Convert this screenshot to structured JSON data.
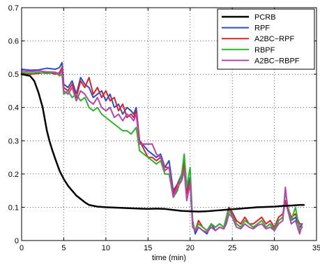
{
  "chart_data": {
    "type": "line",
    "title": "",
    "xlabel": "time (min)",
    "ylabel": "",
    "xlim": [
      0,
      35
    ],
    "ylim": [
      0,
      0.7
    ],
    "xticks": [
      0,
      5,
      10,
      15,
      20,
      25,
      30,
      35
    ],
    "xtick_labels": [
      "0",
      "5",
      "10",
      "15",
      "20",
      "25",
      "30",
      "35"
    ],
    "yticks": [
      0,
      0.1,
      0.2,
      0.3,
      0.4,
      0.5,
      0.6,
      0.7
    ],
    "ytick_labels": [
      "0",
      "0.1",
      "0.2",
      "0.3",
      "0.4",
      "0.5",
      "0.6",
      "0.7"
    ],
    "grid": true,
    "grid_style": "dotted",
    "legend_position": "top-right",
    "series": [
      {
        "name": "PCRB",
        "color": "#000000",
        "x": [
          0,
          1,
          1.5,
          2,
          2.5,
          3,
          3.3,
          3.6,
          4,
          4.5,
          5,
          5.5,
          6,
          6.5,
          7,
          7.5,
          8,
          9,
          10,
          11,
          12,
          13,
          14,
          15,
          16,
          17,
          18,
          19,
          20,
          21,
          22,
          23,
          24,
          25,
          26,
          27,
          28,
          29,
          30,
          31,
          32,
          33,
          33.5
        ],
        "y": [
          0.5,
          0.495,
          0.48,
          0.445,
          0.4,
          0.33,
          0.3,
          0.275,
          0.245,
          0.21,
          0.185,
          0.165,
          0.15,
          0.135,
          0.125,
          0.115,
          0.107,
          0.102,
          0.1,
          0.099,
          0.098,
          0.097,
          0.096,
          0.095,
          0.096,
          0.095,
          0.092,
          0.089,
          0.088,
          0.087,
          0.088,
          0.09,
          0.092,
          0.094,
          0.096,
          0.098,
          0.1,
          0.101,
          0.102,
          0.104,
          0.105,
          0.107,
          0.107
        ]
      },
      {
        "name": "RPF",
        "color": "#2b4ec8",
        "x": [
          0,
          1,
          2,
          3,
          4,
          4.5,
          4.8,
          5,
          5.5,
          6,
          6.5,
          7,
          7.5,
          8,
          8.5,
          9,
          9.5,
          10,
          10.5,
          11,
          11.5,
          12,
          12.5,
          13,
          13.3,
          13.6,
          14,
          15,
          15.5,
          16,
          16.5,
          17,
          17.5,
          18,
          18.5,
          19,
          19.3,
          19.6,
          20,
          20.3,
          20.6,
          21,
          21.5,
          22,
          22.5,
          23,
          23.5,
          24,
          24.3,
          24.6,
          25,
          25.5,
          26,
          26.5,
          27,
          27.5,
          28,
          28.5,
          29,
          29.5,
          30,
          30.5,
          31,
          31.3,
          31.6,
          32,
          32.5,
          33,
          33.3
        ],
        "y": [
          0.515,
          0.512,
          0.513,
          0.518,
          0.515,
          0.52,
          0.535,
          0.47,
          0.46,
          0.48,
          0.44,
          0.49,
          0.47,
          0.46,
          0.43,
          0.44,
          0.45,
          0.42,
          0.44,
          0.4,
          0.41,
          0.38,
          0.4,
          0.39,
          0.38,
          0.4,
          0.3,
          0.27,
          0.26,
          0.25,
          0.26,
          0.22,
          0.24,
          0.15,
          0.17,
          0.2,
          0.24,
          0.15,
          0.19,
          0.06,
          0.02,
          0.04,
          0.03,
          0.02,
          0.05,
          0.03,
          0.04,
          0.035,
          0.06,
          0.09,
          0.08,
          0.05,
          0.04,
          0.06,
          0.05,
          0.04,
          0.05,
          0.06,
          0.04,
          0.05,
          0.03,
          0.06,
          0.07,
          0.12,
          0.09,
          0.06,
          0.07,
          0.04,
          0.05
        ]
      },
      {
        "name": "A2BC−RPF",
        "color": "#e0202a",
        "x": [
          0,
          1,
          2,
          3,
          4,
          4.5,
          4.8,
          5,
          5.5,
          6,
          6.5,
          7,
          7.5,
          8,
          8.5,
          9,
          9.5,
          10,
          10.5,
          11,
          11.5,
          12,
          12.5,
          13,
          13.3,
          13.6,
          14,
          15,
          15.5,
          16,
          16.5,
          17,
          17.5,
          18,
          18.5,
          19,
          19.3,
          19.6,
          20,
          20.3,
          20.6,
          21,
          21.5,
          22,
          22.5,
          23,
          23.5,
          24,
          24.3,
          24.6,
          25,
          25.5,
          26,
          26.5,
          27,
          27.5,
          28,
          28.5,
          29,
          29.5,
          30,
          30.5,
          31,
          31.3,
          31.6,
          32,
          32.5,
          33,
          33.3
        ],
        "y": [
          0.505,
          0.5,
          0.502,
          0.506,
          0.5,
          0.505,
          0.52,
          0.46,
          0.45,
          0.47,
          0.43,
          0.48,
          0.46,
          0.49,
          0.44,
          0.46,
          0.43,
          0.45,
          0.42,
          0.43,
          0.39,
          0.41,
          0.37,
          0.38,
          0.37,
          0.39,
          0.3,
          0.25,
          0.25,
          0.24,
          0.25,
          0.22,
          0.22,
          0.14,
          0.17,
          0.19,
          0.23,
          0.14,
          0.18,
          0.05,
          0.03,
          0.06,
          0.04,
          0.03,
          0.05,
          0.04,
          0.05,
          0.04,
          0.07,
          0.1,
          0.085,
          0.06,
          0.05,
          0.07,
          0.05,
          0.05,
          0.06,
          0.07,
          0.05,
          0.06,
          0.04,
          0.07,
          0.08,
          0.12,
          0.1,
          0.07,
          0.08,
          0.05,
          0.05
        ]
      },
      {
        "name": "RBPF",
        "color": "#2fb32f",
        "x": [
          0,
          1,
          2,
          3,
          4,
          4.5,
          4.8,
          5,
          5.5,
          6,
          6.5,
          7,
          7.5,
          8,
          8.5,
          9,
          9.5,
          10,
          10.5,
          11,
          11.5,
          12,
          12.5,
          13,
          13.3,
          13.6,
          14,
          15,
          15.5,
          16,
          16.5,
          17,
          17.5,
          18,
          18.5,
          19,
          19.3,
          19.6,
          20,
          20.3,
          20.6,
          21,
          21.5,
          22,
          22.5,
          23,
          23.5,
          24,
          24.3,
          24.6,
          25,
          25.5,
          26,
          26.5,
          27,
          27.5,
          28,
          28.5,
          29,
          29.5,
          30,
          30.5,
          31,
          31.3,
          31.6,
          32,
          32.5,
          33,
          33.3
        ],
        "y": [
          0.505,
          0.503,
          0.505,
          0.502,
          0.505,
          0.495,
          0.5,
          0.44,
          0.45,
          0.43,
          0.44,
          0.42,
          0.43,
          0.4,
          0.39,
          0.4,
          0.38,
          0.37,
          0.36,
          0.35,
          0.34,
          0.33,
          0.33,
          0.32,
          0.33,
          0.34,
          0.27,
          0.25,
          0.24,
          0.23,
          0.24,
          0.2,
          0.2,
          0.13,
          0.15,
          0.2,
          0.26,
          0.16,
          0.22,
          0.05,
          0.03,
          0.05,
          0.04,
          0.03,
          0.05,
          0.04,
          0.05,
          0.04,
          0.07,
          0.09,
          0.075,
          0.05,
          0.04,
          0.06,
          0.05,
          0.04,
          0.05,
          0.06,
          0.04,
          0.05,
          0.035,
          0.06,
          0.07,
          0.15,
          0.1,
          0.06,
          0.1,
          0.03,
          0.04
        ]
      },
      {
        "name": "A2BC−RBPF",
        "color": "#b844b0",
        "x": [
          0,
          1,
          2,
          3,
          4,
          4.5,
          4.8,
          5,
          5.5,
          6,
          6.5,
          7,
          7.5,
          8,
          8.5,
          9,
          9.5,
          10,
          10.5,
          11,
          11.5,
          12,
          12.5,
          13,
          13.3,
          13.6,
          14,
          15,
          15.5,
          16,
          16.5,
          17,
          17.5,
          18,
          18.5,
          19,
          19.3,
          19.6,
          20,
          20.3,
          20.6,
          21,
          21.5,
          22,
          22.5,
          23,
          23.5,
          24,
          24.3,
          24.6,
          25,
          25.5,
          26,
          26.5,
          27,
          27.5,
          28,
          28.5,
          29,
          29.5,
          30,
          30.5,
          31,
          31.3,
          31.6,
          32,
          32.5,
          33,
          33.3
        ],
        "y": [
          0.51,
          0.508,
          0.51,
          0.507,
          0.506,
          0.5,
          0.51,
          0.45,
          0.44,
          0.46,
          0.42,
          0.45,
          0.44,
          0.42,
          0.41,
          0.43,
          0.4,
          0.39,
          0.4,
          0.37,
          0.38,
          0.36,
          0.38,
          0.37,
          0.36,
          0.38,
          0.29,
          0.29,
          0.29,
          0.26,
          0.25,
          0.21,
          0.22,
          0.13,
          0.16,
          0.18,
          0.21,
          0.12,
          0.17,
          0.04,
          0.03,
          0.04,
          0.03,
          0.025,
          0.04,
          0.03,
          0.04,
          0.035,
          0.05,
          0.08,
          0.07,
          0.04,
          0.035,
          0.05,
          0.04,
          0.035,
          0.045,
          0.05,
          0.035,
          0.04,
          0.03,
          0.05,
          0.06,
          0.16,
          0.09,
          0.05,
          0.06,
          0.02,
          0.05
        ]
      }
    ]
  }
}
